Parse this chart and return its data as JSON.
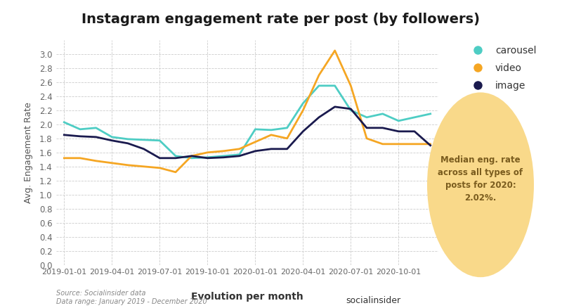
{
  "title": "Instagram engagement rate per post (by followers)",
  "xlabel": "Evolution per month",
  "ylabel": "Avg. Engagement Rate",
  "source_text": "Source: Socialinsider data\nData range: January 2019 - December 2020",
  "annotation_text": "Median eng. rate\nacross all types of\nposts for 2020:\n2.02%.",
  "ylim": [
    0,
    3.2
  ],
  "yticks": [
    0,
    0.2,
    0.4,
    0.6,
    0.8,
    1.0,
    1.2,
    1.4,
    1.6,
    1.8,
    2.0,
    2.2,
    2.4,
    2.6,
    2.8,
    3.0
  ],
  "xtick_labels": [
    "2019-01-01",
    "2019-04-01",
    "2019-07-01",
    "2019-10-01",
    "2020-01-01",
    "2020-04-01",
    "2020-07-01",
    "2020-10-01"
  ],
  "background_color": "#ffffff",
  "carousel_color": "#4ecdc4",
  "video_color": "#f5a623",
  "image_color": "#1a1a4e",
  "annotation_bg_color": "#f9d98a",
  "annotation_text_color": "#7a5c1e",
  "carousel_data": [
    2.03,
    1.93,
    1.95,
    1.82,
    1.79,
    1.78,
    1.77,
    1.55,
    1.52,
    1.53,
    1.55,
    1.57,
    1.93,
    1.92,
    1.95,
    2.3,
    2.55,
    2.55,
    2.2,
    2.1,
    2.15,
    2.05,
    2.1,
    2.15
  ],
  "video_data": [
    1.52,
    1.52,
    1.48,
    1.45,
    1.42,
    1.4,
    1.38,
    1.32,
    1.55,
    1.6,
    1.62,
    1.65,
    1.75,
    1.85,
    1.8,
    2.2,
    2.7,
    3.05,
    2.55,
    1.8,
    1.72,
    1.72,
    1.72,
    1.72
  ],
  "image_data": [
    1.85,
    1.83,
    1.82,
    1.77,
    1.73,
    1.65,
    1.52,
    1.52,
    1.55,
    1.52,
    1.53,
    1.55,
    1.62,
    1.65,
    1.65,
    1.9,
    2.1,
    2.25,
    2.22,
    1.95,
    1.95,
    1.9,
    1.9,
    1.7
  ],
  "n_points": 24
}
